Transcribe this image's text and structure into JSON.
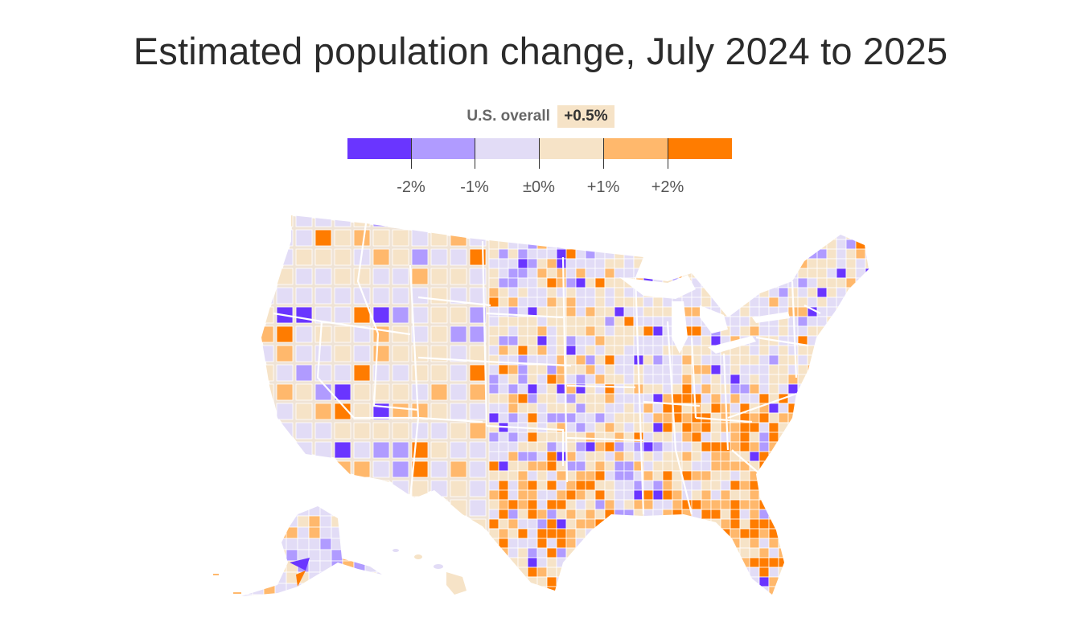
{
  "title": "Estimated population change, July 2024 to 2025",
  "legend": {
    "overall_label": "U.S. overall",
    "overall_value": "+0.5%",
    "colors": [
      "#6a35ff",
      "#b09bff",
      "#e2dcf6",
      "#f6e3c7",
      "#ffb86c",
      "#ff7c00"
    ],
    "ticks": [
      "-2%",
      "-1%",
      "±0%",
      "+1%",
      "+2%"
    ]
  },
  "map": {
    "subject": "Estimated county population change, July 2024 to 2025",
    "regions": [
      "contiguous-us",
      "alaska",
      "hawaii"
    ]
  }
}
